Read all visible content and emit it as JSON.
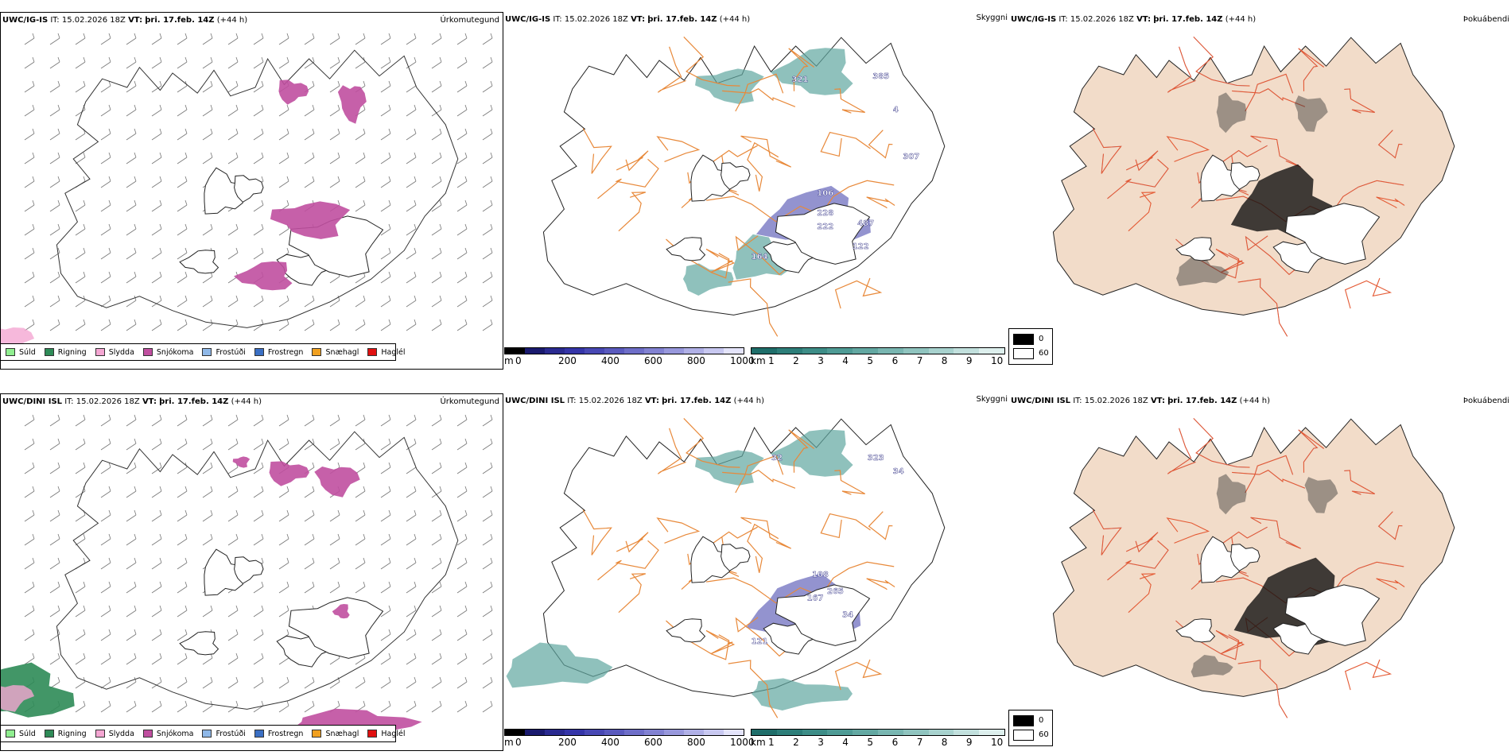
{
  "rows": [
    {
      "model": "UWC/IG-IS",
      "it_label": "IT:",
      "it_value": "15.02.2026 18Z",
      "vt_label": "VT:",
      "vt_value": "þri. 17.feb. 14Z",
      "lead": "(+44 h)",
      "labels": {
        "precip_type": "Úrkomutegund",
        "visibility": "Skyggni",
        "fog": "Þokuábendi"
      },
      "station_values": [
        "321",
        "385",
        "106",
        "228",
        "222",
        "487",
        "307",
        "122",
        "164",
        "4"
      ]
    },
    {
      "model": "UWC/DINI ISL",
      "it_label": "IT:",
      "it_value": "15.02.2026 18Z",
      "vt_label": "VT:",
      "vt_value": "þri. 17.feb. 14Z",
      "lead": "(+44 h)",
      "labels": {
        "precip_type": "Úrkomutegund",
        "visibility": "Skyggni",
        "fog": "Þokuábendi"
      },
      "station_values": [
        "108",
        "167",
        "265",
        "323",
        "34",
        "121",
        "32",
        "34"
      ]
    }
  ],
  "precip_legend": [
    {
      "label": "Súld",
      "color": "#90ee90"
    },
    {
      "label": "Rigning",
      "color": "#2e8b57"
    },
    {
      "label": "Slydda",
      "color": "#f4a6d2"
    },
    {
      "label": "Snjókoma",
      "color": "#c04fa0"
    },
    {
      "label": "Frostúði",
      "color": "#8fb8e8"
    },
    {
      "label": "Frostregn",
      "color": "#3a6fc4"
    },
    {
      "label": "Snæhagl",
      "color": "#f0a020"
    },
    {
      "label": "Haglél",
      "color": "#e01010"
    }
  ],
  "ceiling_bar": {
    "unit": "m",
    "ticks": [
      "0",
      "200",
      "400",
      "600",
      "800",
      "1000"
    ],
    "colors": [
      "#000000",
      "#1a1a6e",
      "#2a2a90",
      "#3535a8",
      "#4848b4",
      "#5a5abe",
      "#6e6ec8",
      "#8282d2",
      "#9898dc",
      "#b0b0e6",
      "#c8c8f0",
      "#e4e4fa"
    ]
  },
  "visibility_bar": {
    "unit": "km",
    "ticks": [
      "1",
      "2",
      "3",
      "4",
      "5",
      "6",
      "7",
      "8",
      "9",
      "10"
    ],
    "colors": [
      "#1f6e6a",
      "#2d7e79",
      "#3d8d87",
      "#4f9b95",
      "#63a8a2",
      "#79b6b1",
      "#90c4bf",
      "#a8d2ce",
      "#c2e0dd",
      "#ddefed"
    ]
  },
  "fog_legend": {
    "items": [
      {
        "label": "0",
        "color": "#000000"
      },
      {
        "label": "60",
        "color": "#ffffff"
      }
    ]
  }
}
